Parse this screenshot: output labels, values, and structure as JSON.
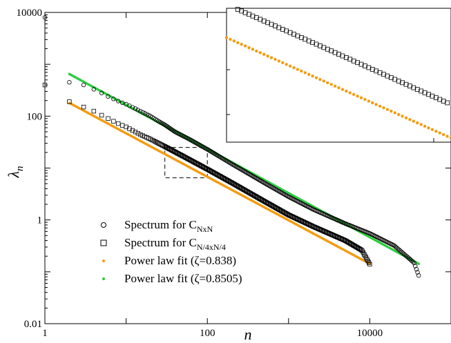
{
  "chart_data": {
    "type": "scatter",
    "xlabel": "n",
    "ylabel": "λ",
    "ylabel_sub": "n",
    "xscale": "log",
    "yscale": "log",
    "xlim": [
      1,
      100000
    ],
    "ylim": [
      0.01,
      10000
    ],
    "x_ticks": [
      {
        "value": 1,
        "label": "1"
      },
      {
        "value": 100,
        "label": "100"
      },
      {
        "value": 10000,
        "label": "10000"
      }
    ],
    "y_ticks": [
      {
        "value": 0.01,
        "label": "0.01"
      },
      {
        "value": 1,
        "label": "1"
      },
      {
        "value": 100,
        "label": "100"
      },
      {
        "value": 10000,
        "label": "10000"
      }
    ],
    "grid": false,
    "legend_position": "bottom-left",
    "legend": [
      {
        "main": "Spectrum for C",
        "sub": "NxN",
        "marker": "circle",
        "color": "#000000"
      },
      {
        "main": "Spectrum for C",
        "sub": "N/4xN/4",
        "marker": "square",
        "color": "#000000"
      },
      {
        "main": "Power law fit (ζ=0.838)",
        "sub": "",
        "marker": "dot",
        "color": "#f39c12"
      },
      {
        "main": "Power law fit (ζ=0.8505)",
        "sub": "",
        "marker": "dot",
        "color": "#2ecc40"
      }
    ],
    "series": [
      {
        "name": "Spectrum for C_NxN",
        "marker": "circle",
        "color": "#000000",
        "x_start": 1,
        "x_end": 40000,
        "points": [
          [
            1,
            8000
          ],
          [
            2,
            450
          ],
          [
            3,
            400
          ],
          [
            4,
            330
          ],
          [
            5,
            280
          ],
          [
            6,
            240
          ],
          [
            7,
            215
          ],
          [
            8,
            195
          ],
          [
            10,
            170
          ],
          [
            15,
            125
          ],
          [
            20,
            100
          ],
          [
            25,
            80
          ],
          [
            30,
            68
          ],
          [
            40,
            50
          ],
          [
            60,
            36
          ],
          [
            100,
            23
          ],
          [
            200,
            12
          ],
          [
            500,
            5.2
          ],
          [
            1000,
            2.8
          ],
          [
            2000,
            1.6
          ],
          [
            5000,
            0.85
          ],
          [
            10000,
            0.55
          ],
          [
            20000,
            0.32
          ],
          [
            35000,
            0.15
          ],
          [
            40000,
            0.085
          ]
        ]
      },
      {
        "name": "Spectrum for C_N/4xN/4",
        "marker": "square",
        "color": "#000000",
        "x_start": 1,
        "x_end": 10000,
        "points": [
          [
            1,
            400
          ],
          [
            2,
            190
          ],
          [
            3,
            150
          ],
          [
            4,
            125
          ],
          [
            6,
            90
          ],
          [
            8,
            72
          ],
          [
            10,
            62
          ],
          [
            15,
            44
          ],
          [
            20,
            36
          ],
          [
            30,
            26
          ],
          [
            50,
            17
          ],
          [
            100,
            9.5
          ],
          [
            200,
            5.2
          ],
          [
            500,
            2.3
          ],
          [
            1000,
            1.25
          ],
          [
            2000,
            0.75
          ],
          [
            5000,
            0.4
          ],
          [
            8000,
            0.26
          ],
          [
            10000,
            0.14
          ]
        ]
      },
      {
        "name": "Power law fit (ζ=0.838)",
        "marker": "dot",
        "color": "#f39c12",
        "exponent": 0.838,
        "x_range": [
          2,
          10000
        ],
        "y_at_x_start": 180
      },
      {
        "name": "Power law fit (ζ=0.8505)",
        "marker": "dot",
        "color": "#2ecc40",
        "exponent": 0.8505,
        "x_range": [
          2,
          40000
        ],
        "y_at_x_start": 650
      }
    ],
    "zoom_box": {
      "x": [
        30,
        100
      ],
      "y": [
        6.5,
        25
      ]
    }
  }
}
